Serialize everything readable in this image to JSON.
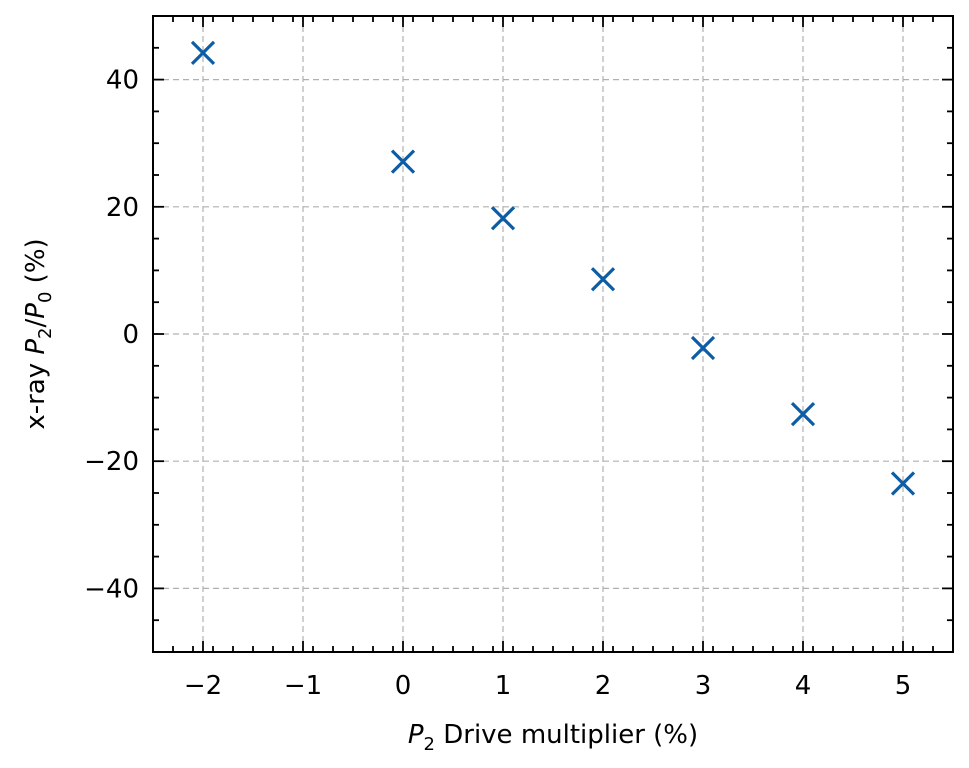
{
  "chart_data": {
    "type": "scatter",
    "title": "",
    "xlabel_parts": {
      "var": "P",
      "sub": "2",
      "rest": " Drive multiplier (%)"
    },
    "ylabel_parts": {
      "prefix": "x-ray ",
      "num_var": "P",
      "num_sub": "2",
      "slash": "/",
      "den_var": "P",
      "den_sub": "0",
      "suffix": " (%)"
    },
    "xlim": [
      -2.5,
      5.5
    ],
    "ylim": [
      -50,
      50
    ],
    "xticks": [
      -2,
      -1,
      0,
      1,
      2,
      3,
      4,
      5
    ],
    "xtick_labels": [
      "−2",
      "−1",
      "0",
      "1",
      "2",
      "3",
      "4",
      "5"
    ],
    "yticks": [
      -40,
      -20,
      0,
      20,
      40
    ],
    "ytick_labels": [
      "−40",
      "−20",
      "0",
      "20",
      "40"
    ],
    "grid": true,
    "marker": "x",
    "marker_color": "#0c5da5",
    "series": [
      {
        "x": [
          -2,
          0,
          1,
          2,
          3,
          4,
          5
        ],
        "y": [
          44.2,
          27.1,
          18.2,
          8.6,
          -2.2,
          -12.6,
          -23.5
        ]
      }
    ]
  }
}
